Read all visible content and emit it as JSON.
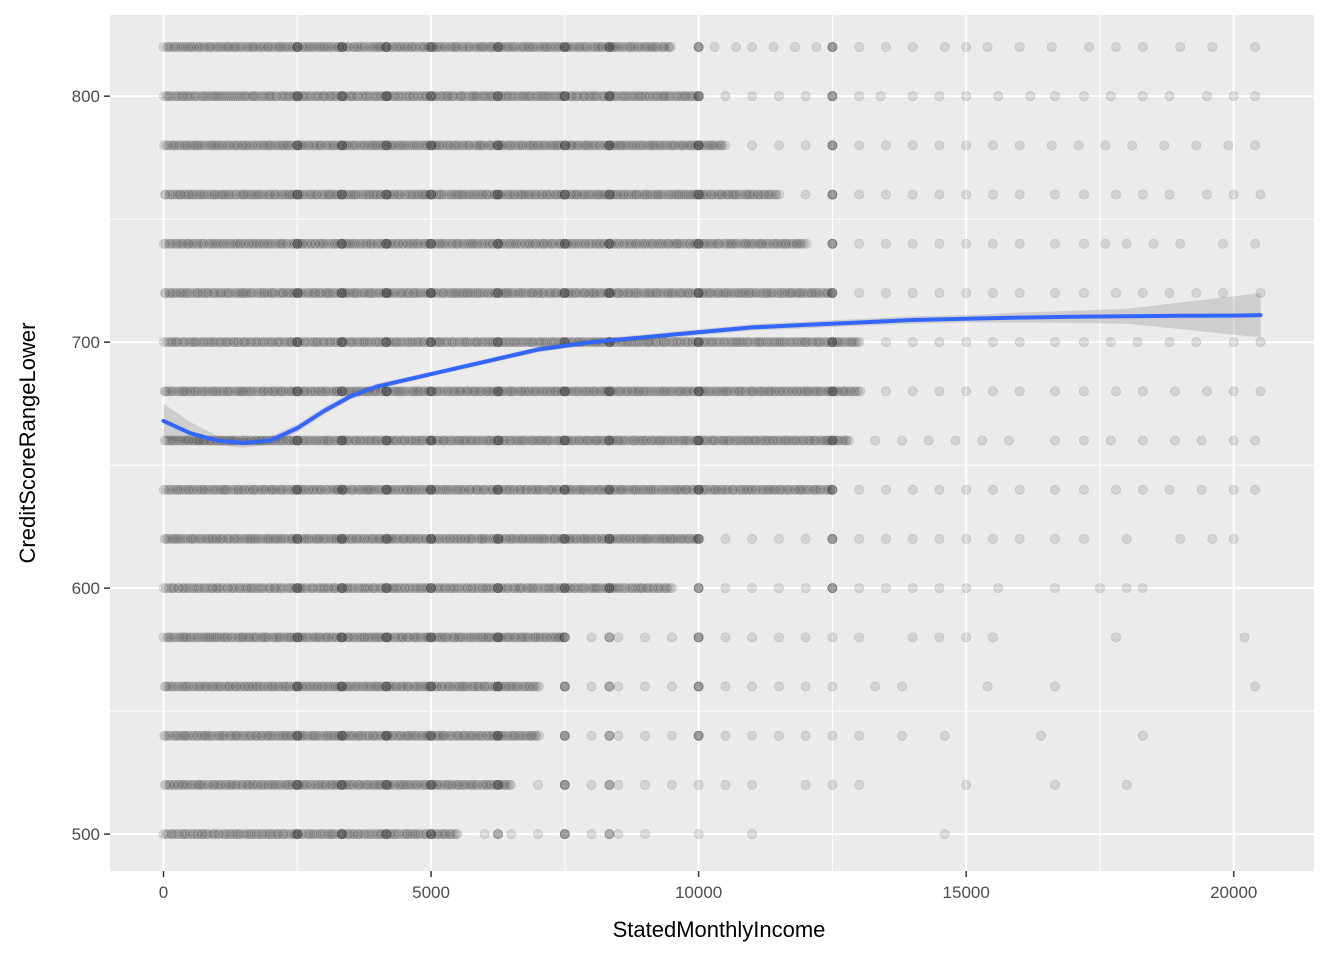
{
  "chart_data": {
    "type": "scatter",
    "title": "",
    "xlabel": "StatedMonthlyIncome",
    "ylabel": "CreditScoreRangeLower",
    "xlim": [
      -1000,
      21500
    ],
    "ylim": [
      485,
      833
    ],
    "x_ticks": [
      0,
      5000,
      10000,
      15000,
      20000
    ],
    "x_tick_labels": [
      "0",
      "5000",
      "10000",
      "15000",
      "20000"
    ],
    "y_ticks": [
      500,
      600,
      700,
      800
    ],
    "y_tick_labels": [
      "500",
      "600",
      "700",
      "800"
    ],
    "grid": true,
    "legend": "none",
    "point_color": "#000000",
    "point_alpha": 0.1,
    "smooth_color": "#3366ff",
    "ribbon_color": "#999999",
    "point_rows": [
      {
        "y": 820,
        "dense_max": 9500,
        "sparse_x": [
          10000,
          10300,
          10700,
          11000,
          11400,
          11800,
          12200,
          12500,
          13000,
          13500,
          14000,
          14600,
          15000,
          15400,
          16000,
          16600,
          17300,
          17800,
          18300,
          19000,
          19600,
          20400
        ]
      },
      {
        "y": 800,
        "dense_max": 10000,
        "sparse_x": [
          10500,
          11000,
          11500,
          12000,
          12500,
          13000,
          13400,
          14000,
          14500,
          15000,
          15600,
          16200,
          16660,
          17200,
          17700,
          18300,
          18800,
          19500,
          20000,
          20400
        ]
      },
      {
        "y": 780,
        "dense_max": 10500,
        "sparse_x": [
          11000,
          11500,
          12000,
          12500,
          13000,
          13500,
          14000,
          14500,
          15000,
          15500,
          16000,
          16600,
          17100,
          17600,
          18100,
          18700,
          19300,
          19900,
          20400
        ]
      },
      {
        "y": 760,
        "dense_max": 11500,
        "sparse_x": [
          12000,
          12500,
          13000,
          13500,
          14000,
          14500,
          15000,
          15500,
          16000,
          16660,
          17200,
          17800,
          18300,
          18800,
          19500,
          20000,
          20500
        ]
      },
      {
        "y": 740,
        "dense_max": 12000,
        "sparse_x": [
          12500,
          13000,
          13500,
          14000,
          14500,
          15000,
          15500,
          16000,
          16660,
          17200,
          17600,
          18000,
          18500,
          19000,
          19800,
          20400
        ]
      },
      {
        "y": 720,
        "dense_max": 12500,
        "sparse_x": [
          13000,
          13500,
          14000,
          14500,
          15000,
          15500,
          16000,
          16660,
          17200,
          17800,
          18300,
          18800,
          19300,
          19800,
          20500
        ]
      },
      {
        "y": 700,
        "dense_max": 13000,
        "sparse_x": [
          13500,
          14000,
          14500,
          15000,
          15500,
          16000,
          16660,
          17200,
          17700,
          18200,
          18800,
          19300,
          20000,
          20500
        ]
      },
      {
        "y": 680,
        "dense_max": 13000,
        "sparse_x": [
          13500,
          14000,
          14500,
          15000,
          15500,
          16000,
          16660,
          17200,
          17800,
          18300,
          18900,
          19500,
          20000,
          20500
        ]
      },
      {
        "y": 660,
        "dense_max": 12800,
        "sparse_x": [
          13300,
          13800,
          14300,
          14800,
          15300,
          15800,
          16660,
          17200,
          17700,
          18300,
          18900,
          19400,
          20000,
          20400
        ]
      },
      {
        "y": 640,
        "dense_max": 12500,
        "sparse_x": [
          13000,
          13500,
          14000,
          14500,
          15000,
          15500,
          16000,
          16660,
          17200,
          17800,
          18300,
          18800,
          19400,
          20000,
          20400
        ]
      },
      {
        "y": 620,
        "dense_max": 10000,
        "sparse_x": [
          10500,
          11000,
          11500,
          12000,
          12500,
          13000,
          13500,
          14000,
          14500,
          15000,
          15500,
          16000,
          16660,
          17200,
          18000,
          19000,
          19600,
          20000
        ]
      },
      {
        "y": 600,
        "dense_max": 9500,
        "sparse_x": [
          10000,
          10500,
          11000,
          11500,
          12000,
          12500,
          13000,
          13500,
          14000,
          14500,
          15000,
          15600,
          16660,
          17500,
          18000,
          18300
        ]
      },
      {
        "y": 580,
        "dense_max": 7500,
        "sparse_x": [
          8000,
          8500,
          9000,
          9500,
          10000,
          10500,
          11000,
          11500,
          12000,
          12500,
          13000,
          14000,
          14500,
          15000,
          15500,
          17800,
          20200
        ]
      },
      {
        "y": 560,
        "dense_max": 7000,
        "sparse_x": [
          7500,
          8000,
          8500,
          9000,
          9500,
          10000,
          10500,
          11000,
          11500,
          12000,
          12500,
          13300,
          13800,
          15400,
          16660,
          20400
        ]
      },
      {
        "y": 540,
        "dense_max": 7000,
        "sparse_x": [
          7500,
          8000,
          8500,
          9000,
          9500,
          10000,
          10500,
          11000,
          11500,
          12000,
          12500,
          13000,
          13800,
          14600,
          16400,
          18300
        ]
      },
      {
        "y": 520,
        "dense_max": 6500,
        "sparse_x": [
          7000,
          7500,
          8000,
          8500,
          9000,
          9500,
          10000,
          10500,
          11000,
          12000,
          12500,
          13000,
          15000,
          16660,
          18000
        ]
      },
      {
        "y": 500,
        "dense_max": 5500,
        "sparse_x": [
          6000,
          6500,
          7000,
          7500,
          8000,
          8500,
          9000,
          10000,
          11000,
          14600
        ]
      }
    ],
    "smooth_line": [
      {
        "x": 0,
        "y": 668
      },
      {
        "x": 500,
        "y": 663
      },
      {
        "x": 1000,
        "y": 660
      },
      {
        "x": 1500,
        "y": 659
      },
      {
        "x": 2000,
        "y": 660
      },
      {
        "x": 2500,
        "y": 665
      },
      {
        "x": 3000,
        "y": 672
      },
      {
        "x": 3500,
        "y": 678
      },
      {
        "x": 4000,
        "y": 682
      },
      {
        "x": 5000,
        "y": 687
      },
      {
        "x": 6000,
        "y": 692
      },
      {
        "x": 7000,
        "y": 697
      },
      {
        "x": 8000,
        "y": 700
      },
      {
        "x": 9000,
        "y": 702
      },
      {
        "x": 10000,
        "y": 704
      },
      {
        "x": 11000,
        "y": 706
      },
      {
        "x": 12000,
        "y": 707
      },
      {
        "x": 13000,
        "y": 708
      },
      {
        "x": 14000,
        "y": 709
      },
      {
        "x": 15000,
        "y": 709.5
      },
      {
        "x": 16000,
        "y": 710
      },
      {
        "x": 17000,
        "y": 710.3
      },
      {
        "x": 18000,
        "y": 710.5
      },
      {
        "x": 19000,
        "y": 710.7
      },
      {
        "x": 20000,
        "y": 710.8
      },
      {
        "x": 20500,
        "y": 711
      }
    ],
    "ribbon_halfwidth": [
      {
        "x": 0,
        "d": 7
      },
      {
        "x": 1000,
        "d": 2
      },
      {
        "x": 5000,
        "d": 1
      },
      {
        "x": 15000,
        "d": 1.5
      },
      {
        "x": 18000,
        "d": 3
      },
      {
        "x": 20500,
        "d": 9
      }
    ]
  }
}
